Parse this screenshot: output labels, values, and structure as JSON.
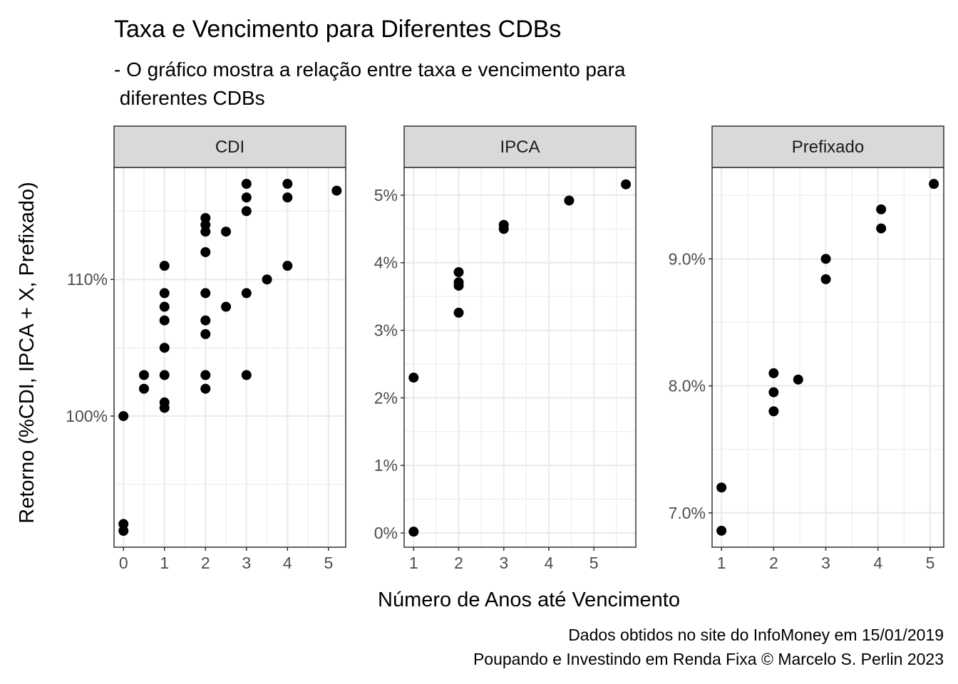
{
  "chart_data": {
    "type": "scatter",
    "title": "Taxa e Vencimento para Diferentes CDBs",
    "subtitle": [
      "- O gráfico mostra a relação entre taxa e vencimento para",
      " diferentes CDBs"
    ],
    "xlabel": "Número de Anos até Vencimento",
    "ylabel": "Retorno (%CDI, IPCA + X, Prefixado)",
    "caption": [
      "Dados obtidos no site do InfoMoney em 15/01/2019",
      "Poupando e Investindo em Renda Fixa © Marcelo S. Perlin 2023"
    ],
    "grid": true,
    "point_color": "#000000",
    "strip_color": "#d9d9d9",
    "panels": [
      {
        "name": "CDI",
        "xlim": [
          -0.23,
          5.42
        ],
        "ylim": [
          90.4,
          118.2
        ],
        "xticks": [
          0,
          1,
          2,
          3,
          4,
          5
        ],
        "xtick_labels": [
          "0",
          "1",
          "2",
          "3",
          "4",
          "5"
        ],
        "yticks": [
          100,
          110
        ],
        "ytick_labels": [
          "100%",
          "110%"
        ],
        "ymajor_step": 10,
        "points": [
          [
            0,
            100
          ],
          [
            0,
            92.1
          ],
          [
            0,
            91.6
          ],
          [
            0.5,
            103
          ],
          [
            0.5,
            102
          ],
          [
            1,
            111
          ],
          [
            1,
            109
          ],
          [
            1,
            108
          ],
          [
            1,
            107
          ],
          [
            1,
            105
          ],
          [
            1,
            103
          ],
          [
            1,
            101
          ],
          [
            1,
            100.6
          ],
          [
            2,
            114.5
          ],
          [
            2,
            114
          ],
          [
            2,
            113.5
          ],
          [
            2,
            112
          ],
          [
            2,
            109
          ],
          [
            2,
            107
          ],
          [
            2,
            106
          ],
          [
            2,
            103
          ],
          [
            2,
            102
          ],
          [
            2.5,
            113.5
          ],
          [
            2.5,
            108
          ],
          [
            3,
            117
          ],
          [
            3,
            116
          ],
          [
            3,
            115
          ],
          [
            3,
            109
          ],
          [
            3,
            103
          ],
          [
            3.5,
            110
          ],
          [
            4,
            117
          ],
          [
            4,
            116
          ],
          [
            4,
            111
          ],
          [
            5.2,
            116.5
          ]
        ]
      },
      {
        "name": "IPCA",
        "xlim": [
          0.79,
          5.93
        ],
        "ylim": [
          -0.21,
          5.41
        ],
        "xticks": [
          1,
          2,
          3,
          4,
          5
        ],
        "xtick_labels": [
          "1",
          "2",
          "3",
          "4",
          "5"
        ],
        "yticks": [
          0,
          1,
          2,
          3,
          4,
          5
        ],
        "ytick_labels": [
          "0%",
          "1%",
          "2%",
          "3%",
          "4%",
          "5%"
        ],
        "ymajor_step": 1,
        "points": [
          [
            1,
            2.3
          ],
          [
            1,
            0.02
          ],
          [
            2,
            3.86
          ],
          [
            2,
            3.71
          ],
          [
            2,
            3.66
          ],
          [
            2,
            3.26
          ],
          [
            3,
            4.56
          ],
          [
            3,
            4.5
          ],
          [
            4.45,
            4.92
          ],
          [
            5.71,
            5.16
          ]
        ]
      },
      {
        "name": "Prefixado",
        "xlim": [
          0.82,
          5.26
        ],
        "ylim": [
          6.73,
          9.72
        ],
        "xticks": [
          1,
          2,
          3,
          4,
          5
        ],
        "xtick_labels": [
          "1",
          "2",
          "3",
          "4",
          "5"
        ],
        "yticks": [
          7,
          8,
          9
        ],
        "ytick_labels": [
          "7.0%",
          "8.0%",
          "9.0%"
        ],
        "ymajor_step": 1,
        "points": [
          [
            1,
            7.2
          ],
          [
            1,
            6.86
          ],
          [
            2,
            8.1
          ],
          [
            2,
            7.95
          ],
          [
            2,
            7.8
          ],
          [
            2.47,
            8.05
          ],
          [
            3,
            9.0
          ],
          [
            3,
            8.84
          ],
          [
            4.06,
            9.39
          ],
          [
            4.06,
            9.24
          ],
          [
            5.07,
            9.59
          ]
        ]
      }
    ]
  }
}
